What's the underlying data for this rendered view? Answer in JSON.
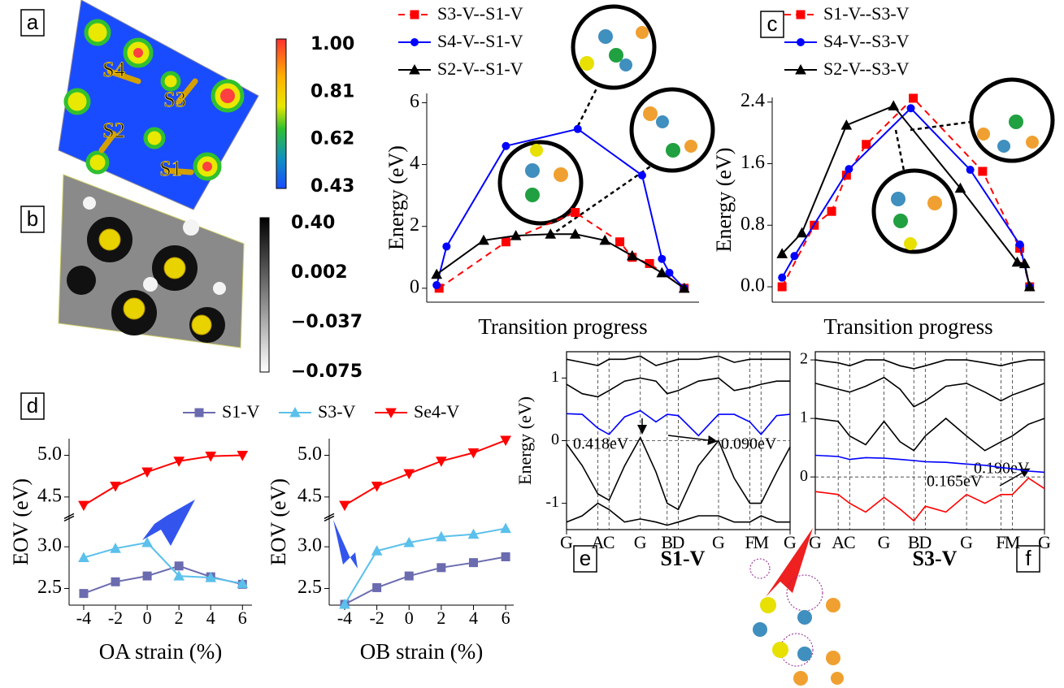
{
  "maps": [
    {
      "panel": "a",
      "colorbar_ticks": [
        {
          "value": 1,
          "label": "1.00"
        },
        0.81,
        0.62,
        0.43
      ],
      "atom_labels": [
        "S4",
        "S3",
        "S2",
        "S1"
      ]
    },
    {
      "panel": "b",
      "colorbar_ticks": [
        {
          "value": 0.4,
          "label": "0.40"
        },
        0.002,
        {
          "value": -0.037,
          "label": "−0.037"
        },
        {
          "value": -0.075,
          "label": "−0.075"
        }
      ]
    }
  ],
  "chart_data": [
    {
      "type": "line",
      "ylabel": "Energy (eV)",
      "xlabel": "Transition progress",
      "xlim": [
        -0.04,
        1.06
      ],
      "ylim": [
        -0.45,
        6.3
      ],
      "yticks": [
        0,
        2,
        4,
        6
      ],
      "legend": "top",
      "series": [
        {
          "name": "S3-V--S1-V",
          "color": "#ff0000",
          "dash": true,
          "marker": "square",
          "x": [
            0.01,
            0.28,
            0.56,
            0.74,
            0.79,
            0.86,
            1
          ],
          "values": [
            0,
            1.5,
            2.45,
            1.5,
            1.0,
            0.8,
            0
          ]
        },
        {
          "name": "S4-V--S1-V",
          "color": "#0000ff",
          "marker": "circle",
          "x": [
            0,
            0.04,
            0.28,
            0.57,
            0.83,
            0.91,
            0.94,
            1
          ],
          "values": [
            0.1,
            1.35,
            4.6,
            5.15,
            3.65,
            0.95,
            0.5,
            0
          ]
        },
        {
          "name": "S2-V--S1-V",
          "color": "#000000",
          "marker": "triangle",
          "x": [
            0,
            0.19,
            0.32,
            0.46,
            0.56,
            0.68,
            0.79,
            0.91,
            1
          ],
          "values": [
            0.45,
            1.55,
            1.7,
            1.75,
            1.75,
            1.55,
            1.05,
            0.5,
            0
          ]
        }
      ]
    },
    {
      "type": "line",
      "panel": "c",
      "ylabel": "Energy (eV)",
      "xlabel": "Transition progress",
      "xlim": [
        -0.04,
        1.06
      ],
      "ylim": [
        -0.2,
        2.46
      ],
      "yticks": [
        {
          "value": 0,
          "label": "0.0"
        },
        {
          "value": 0.8,
          "label": "0.8"
        },
        {
          "value": 1.6,
          "label": "1.6"
        },
        {
          "value": 2.4,
          "label": "2.4"
        }
      ],
      "legend": "top",
      "series": [
        {
          "name": "S1-V--S3-V",
          "color": "#ff0000",
          "dash": true,
          "marker": "square",
          "x": [
            0,
            0.13,
            0.2,
            0.26,
            0.34,
            0.53,
            0.81,
            0.96,
            1
          ],
          "values": [
            0,
            0.8,
            0.98,
            1.45,
            1.85,
            2.45,
            1.5,
            0.5,
            0
          ]
        },
        {
          "name": "S4-V--S3-V",
          "color": "#0000ff",
          "marker": "circle",
          "x": [
            0,
            0.05,
            0.27,
            0.52,
            0.76,
            0.96,
            1
          ],
          "values": [
            0.12,
            0.4,
            1.53,
            2.32,
            1.52,
            0.55,
            0
          ]
        },
        {
          "name": "S2-V--S3-V",
          "color": "#000000",
          "marker": "triangle",
          "x": [
            0,
            0.08,
            0.26,
            0.45,
            0.72,
            0.95,
            0.98,
            1
          ],
          "values": [
            0.43,
            0.7,
            2.1,
            2.35,
            1.28,
            0.32,
            0.3,
            0
          ]
        }
      ]
    },
    {
      "type": "line",
      "panel": "d",
      "ylabel": "EOV (eV)",
      "xlabel": "OA strain (%)",
      "xlim": [
        -4.92,
        6.6
      ],
      "ylim": [
        2.3,
        5.2
      ],
      "axis_break": [
        3.3,
        4.3
      ],
      "xticks": [
        -4,
        -2,
        0,
        2,
        4,
        6
      ],
      "yticks": [
        {
          "value": 2.5,
          "label": "2.5"
        },
        {
          "value": 3,
          "label": "3.0"
        },
        {
          "value": 4.5,
          "label": "4.5"
        },
        {
          "value": 5,
          "label": "5.0"
        }
      ],
      "legend": "top",
      "x": [
        -4,
        -2,
        0,
        2,
        4,
        6
      ],
      "series": [
        {
          "name": "S1-V",
          "color": "#6b6bb0",
          "marker": "square",
          "values": [
            2.44,
            2.58,
            2.65,
            2.77,
            2.64,
            2.55
          ]
        },
        {
          "name": "S3-V",
          "color": "#5bc0eb",
          "marker": "triangle",
          "values": [
            2.87,
            2.98,
            3.05,
            2.65,
            2.63,
            2.56
          ]
        },
        {
          "name": "Se4-V",
          "color": "#ff0000",
          "marker": "triangle-down",
          "values": [
            4.4,
            4.63,
            4.8,
            4.93,
            4.99,
            5.0
          ]
        }
      ]
    },
    {
      "type": "line",
      "ylabel": "EOV (eV)",
      "xlabel": "OB strain (%)",
      "xlim": [
        -4.96,
        6.5
      ],
      "ylim": [
        2.3,
        5.2
      ],
      "axis_break": [
        3.3,
        4.3
      ],
      "xticks": [
        -4,
        -2,
        0,
        2,
        4,
        6
      ],
      "yticks": [
        {
          "value": 2.5,
          "label": "2.5"
        },
        {
          "value": 3,
          "label": "3.0"
        },
        {
          "value": 4.5,
          "label": "4.5"
        },
        {
          "value": 5,
          "label": "5.0"
        }
      ],
      "x": [
        -4,
        -2,
        0,
        2,
        4,
        6
      ],
      "series": [
        {
          "color": "#6b6bb0",
          "marker": "square",
          "values": [
            2.31,
            2.51,
            2.65,
            2.75,
            2.81,
            2.88
          ]
        },
        {
          "color": "#5bc0eb",
          "marker": "triangle",
          "values": [
            2.31,
            2.95,
            3.05,
            3.12,
            3.15,
            3.22
          ]
        },
        {
          "color": "#ff0000",
          "marker": "triangle-down",
          "values": [
            4.4,
            4.63,
            4.78,
            4.93,
            5.03,
            5.18
          ]
        }
      ]
    },
    {
      "type": "line",
      "panel": "e",
      "title": "S1-V",
      "ylabel": "Energy (eV)",
      "xlim": [
        0,
        1
      ],
      "ylim": [
        -1.42,
        1.42
      ],
      "yticks": [
        -1,
        0,
        1
      ],
      "frame": true,
      "grid": true,
      "annotations": [
        "0.418eV",
        "0.090eV"
      ],
      "xticks": [
        {
          "value": 0,
          "label": "G"
        },
        {
          "value": 0.14,
          "label": "A"
        },
        {
          "value": 0.19,
          "label": "C"
        },
        {
          "value": 0.33,
          "label": "G"
        },
        {
          "value": 0.45,
          "label": "B"
        },
        {
          "value": 0.5,
          "label": "D"
        },
        {
          "value": 0.68,
          "label": "G"
        },
        {
          "value": 0.82,
          "label": "F"
        },
        {
          "value": 0.87,
          "label": "M"
        },
        {
          "value": 1,
          "label": "G"
        }
      ],
      "x": [
        0,
        0.07,
        0.14,
        0.19,
        0.26,
        0.33,
        0.4,
        0.45,
        0.5,
        0.59,
        0.68,
        0.75,
        0.82,
        0.87,
        0.94,
        1
      ],
      "series": [
        {
          "color": "#000000",
          "values": [
            1.3,
            1.25,
            1.2,
            1.3,
            1.3,
            1.35,
            1.2,
            1.25,
            1.3,
            1.3,
            1.35,
            1.25,
            1.3,
            1.3,
            1.3,
            1.3
          ]
        },
        {
          "color": "#000000",
          "values": [
            0.9,
            0.75,
            0.7,
            0.8,
            0.95,
            1.0,
            0.95,
            0.75,
            0.8,
            0.95,
            1.0,
            0.8,
            0.85,
            0.9,
            0.95,
            0.95
          ]
        },
        {
          "color": "#0000ff",
          "values": [
            0.43,
            0.42,
            0.2,
            0.1,
            0.38,
            0.48,
            0.3,
            0.42,
            0.4,
            0.08,
            0.42,
            0.42,
            0.3,
            0.1,
            0.4,
            0.42
          ]
        },
        {
          "color": "#000000",
          "values": [
            -0.05,
            -0.4,
            -0.85,
            -0.95,
            -0.4,
            0.05,
            -0.5,
            -1.0,
            -1.1,
            -0.4,
            0.0,
            -0.6,
            -1.0,
            -1.0,
            -0.5,
            -0.1
          ]
        },
        {
          "color": "#000000",
          "values": [
            -1.3,
            -1.2,
            -1.0,
            -1.1,
            -1.3,
            -1.25,
            -1.3,
            -1.35,
            -1.3,
            -1.2,
            -1.2,
            -1.3,
            -1.3,
            -1.2,
            -1.3,
            -1.3
          ]
        }
      ]
    },
    {
      "type": "line",
      "panel": "f",
      "title": "S3-V",
      "xlim": [
        0,
        1
      ],
      "ylim": [
        -0.9,
        2.14
      ],
      "yticks": [
        0,
        1,
        2
      ],
      "frame": true,
      "grid": true,
      "annotations": [
        "0.190eV",
        "0.165eV"
      ],
      "xticks": [
        {
          "value": 0,
          "label": "G"
        },
        {
          "value": 0.1,
          "label": "A"
        },
        {
          "value": 0.15,
          "label": "C"
        },
        {
          "value": 0.3,
          "label": "G"
        },
        {
          "value": 0.43,
          "label": "B"
        },
        {
          "value": 0.48,
          "label": "D"
        },
        {
          "value": 0.66,
          "label": "G"
        },
        {
          "value": 0.81,
          "label": "F"
        },
        {
          "value": 0.86,
          "label": "M"
        },
        {
          "value": 1,
          "label": "G"
        }
      ],
      "x": [
        0,
        0.1,
        0.15,
        0.22,
        0.3,
        0.37,
        0.43,
        0.48,
        0.57,
        0.66,
        0.74,
        0.81,
        0.86,
        0.93,
        1
      ],
      "series": [
        {
          "color": "#000000",
          "values": [
            2.0,
            1.95,
            1.9,
            2.0,
            2.0,
            1.9,
            1.85,
            1.9,
            2.0,
            2.0,
            1.95,
            1.9,
            1.95,
            2.0,
            2.0
          ]
        },
        {
          "color": "#000000",
          "values": [
            1.6,
            1.5,
            1.45,
            1.55,
            1.7,
            1.5,
            1.2,
            1.3,
            1.55,
            1.6,
            1.45,
            1.3,
            1.4,
            1.5,
            1.6
          ]
        },
        {
          "color": "#000000",
          "values": [
            1.0,
            0.95,
            0.7,
            0.55,
            0.95,
            0.6,
            0.45,
            0.7,
            1.0,
            0.7,
            0.45,
            0.6,
            0.7,
            0.9,
            1.0
          ]
        },
        {
          "color": "#0000ff",
          "values": [
            0.37,
            0.35,
            0.3,
            0.33,
            0.32,
            0.3,
            0.28,
            0.26,
            0.25,
            0.22,
            0.2,
            0.16,
            0.14,
            0.1,
            0.08
          ]
        },
        {
          "color": "#ff0000",
          "values": [
            -0.25,
            -0.3,
            -0.45,
            -0.6,
            -0.35,
            -0.55,
            -0.75,
            -0.5,
            -0.6,
            -0.3,
            -0.45,
            -0.3,
            -0.3,
            -0.02,
            -0.2
          ]
        }
      ]
    }
  ]
}
